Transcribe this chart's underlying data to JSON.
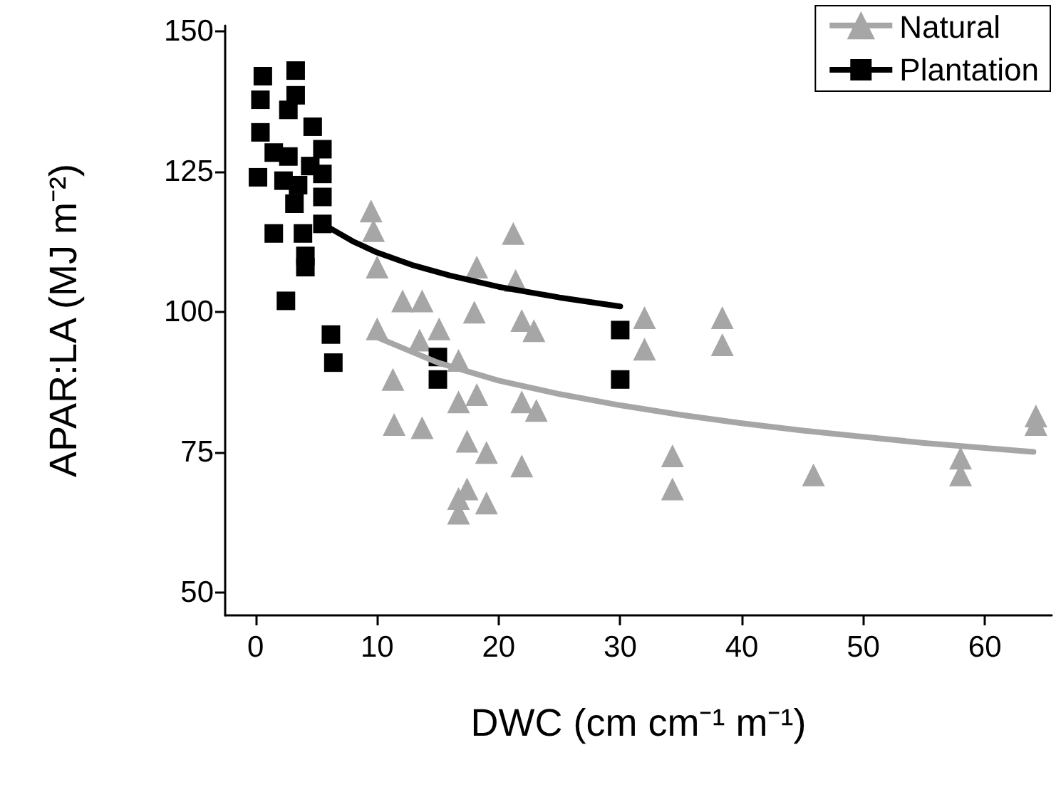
{
  "chart_data": {
    "type": "scatter",
    "xlabel": "DWC (cm cm⁻¹ m⁻¹)",
    "ylabel": "APAR:LA (MJ m⁻²)",
    "xlim": [
      -2.5,
      65.5
    ],
    "xticks": [
      0,
      10,
      20,
      30,
      40,
      50,
      60
    ],
    "ylim": [
      46,
      151
    ],
    "yticks": [
      50,
      75,
      100,
      125,
      150
    ],
    "grid": false,
    "legend": "top right",
    "series": [
      {
        "name": "Natural",
        "marker": "triangle",
        "color": "#a6a6a6",
        "x": [
          9.5,
          9.7,
          10,
          12.1,
          13.7,
          10,
          15.1,
          13.5,
          18,
          18.2,
          21.2,
          21.4,
          21.9,
          22.9,
          11.3,
          16.7,
          16.7,
          18.2,
          21.9,
          23.1,
          11.4,
          13.7,
          17.4,
          19,
          21.9,
          17.4,
          16.7,
          19,
          16.7,
          32,
          32,
          38.4,
          38.4,
          34.3,
          34.3,
          45.9,
          58,
          58,
          64.2,
          64.2
        ],
        "values": [
          118,
          114.5,
          108,
          102,
          102,
          97,
          97,
          95,
          100,
          108,
          114,
          105.6,
          98.5,
          96.7,
          88,
          91.4,
          84,
          85.3,
          84,
          82.5,
          80,
          79.4,
          77,
          75,
          72.6,
          68.5,
          66.8,
          66,
          64.2,
          99,
          93.4,
          99,
          94.2,
          74.4,
          68.5,
          71,
          74,
          71,
          81.5,
          80
        ]
      },
      {
        "name": "Plantation",
        "marker": "square",
        "color": "#000000",
        "x": [
          0.2,
          2.5,
          6.2,
          6.4,
          4.1,
          4.1,
          1.5,
          5.5,
          5.5,
          5.5,
          5.5,
          4.7,
          3.3,
          3.3,
          0.6,
          0.4,
          0.4,
          1.5,
          2.7,
          2.7,
          2.3,
          3.5,
          3.2,
          4.5,
          3.9,
          30,
          30,
          15,
          15
        ],
        "values": [
          124,
          102,
          96,
          91,
          108,
          110,
          114,
          115.7,
          120.5,
          124.6,
          129,
          133,
          143,
          138.6,
          142,
          137.8,
          132,
          128.4,
          136,
          127.7,
          123.4,
          122.6,
          119.3,
          126,
          114,
          96.8,
          88,
          92,
          88
        ]
      },
      {
        "type": "line",
        "marker": "none",
        "color": "#a6a6a6",
        "x": [
          10,
          15,
          20,
          25,
          30,
          35,
          40,
          45,
          50,
          55,
          60,
          64
        ],
        "values": [
          95.5,
          91.0,
          87.8,
          85.4,
          83.4,
          81.7,
          80.2,
          78.9,
          77.8,
          76.7,
          75.8,
          75.1
        ]
      },
      {
        "type": "line",
        "marker": "none",
        "color": "#000000",
        "x": [
          6,
          8,
          10,
          13,
          16,
          20,
          25,
          30
        ],
        "values": [
          115.1,
          112.6,
          110.6,
          108.3,
          106.5,
          104.5,
          102.6,
          101.0
        ]
      }
    ]
  }
}
